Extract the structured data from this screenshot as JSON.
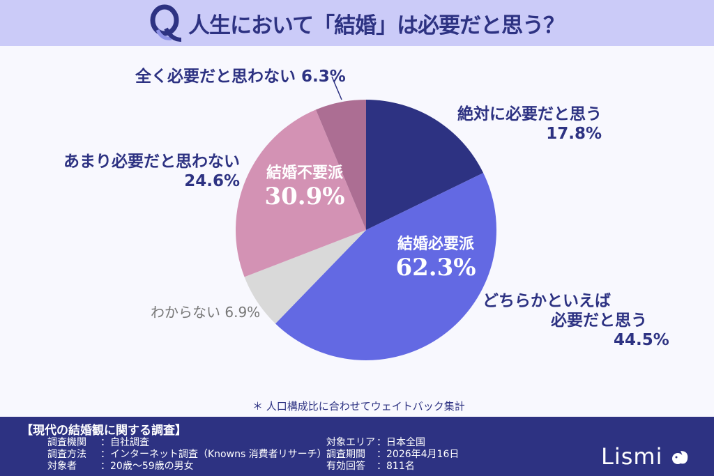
{
  "header": {
    "q_label": "Q",
    "title": "人生において「結婚」は必要だと思う？"
  },
  "chart_data": {
    "type": "pie",
    "title": "人生において「結婚」は必要だと思う？",
    "start_angle": "12 o'clock",
    "direction": "clockwise",
    "categories": [
      "絶対に必要だと思う",
      "どちらかといえば必要だと思う",
      "わからない",
      "あまり必要だと思わない",
      "全く必要だと思わない"
    ],
    "values": [
      17.8,
      44.5,
      6.9,
      24.6,
      6.3
    ],
    "colors": [
      "#2d3282",
      "#6369e3",
      "#d9d9d9",
      "#d392b4",
      "#ac6e93"
    ],
    "groups": [
      {
        "name": "結婚必要派",
        "value": 62.3,
        "members": [
          "絶対に必要だと思う",
          "どちらかといえば必要だと思う"
        ]
      },
      {
        "name": "結婚不要派",
        "value": 30.9,
        "members": [
          "あまり必要だと思わない",
          "全く必要だと思わない"
        ]
      }
    ]
  },
  "labels": {
    "absolutely": {
      "line1": "絶対に必要だと思う",
      "pct": "17.8%"
    },
    "rather": {
      "line1": "どちらかといえば",
      "line2": "必要だと思う",
      "pct": "44.5%"
    },
    "unknown": {
      "text": "わからない 6.9%"
    },
    "not_really": {
      "line1": "あまり必要だと思わない",
      "pct": "24.6%"
    },
    "not_at_all": {
      "text": "全く必要だと思わない 6.3%"
    }
  },
  "inner": {
    "need": {
      "label": "結婚必要派",
      "pct": "62.3%"
    },
    "no_need": {
      "label": "結婚不要派",
      "pct": "30.9%"
    }
  },
  "note": "＊ 人口構成比に合わせてウェイトバック集計",
  "footer": {
    "title": "【現代の結婚観に関する調査】",
    "left": [
      {
        "key": "調査機関",
        "value": "：自社調査"
      },
      {
        "key": "調査方法",
        "value": "：インターネット調査（Knowns 消費者リサーチ）"
      },
      {
        "key": "対象者",
        "value": "：20歳～59歳の男女"
      }
    ],
    "right": [
      {
        "key": "対象エリア",
        "value": "：日本全国"
      },
      {
        "key": "調査期間",
        "value": "：2026年4月16日"
      },
      {
        "key": "有効回答",
        "value": "：811名"
      }
    ],
    "logo": "Lismi"
  }
}
